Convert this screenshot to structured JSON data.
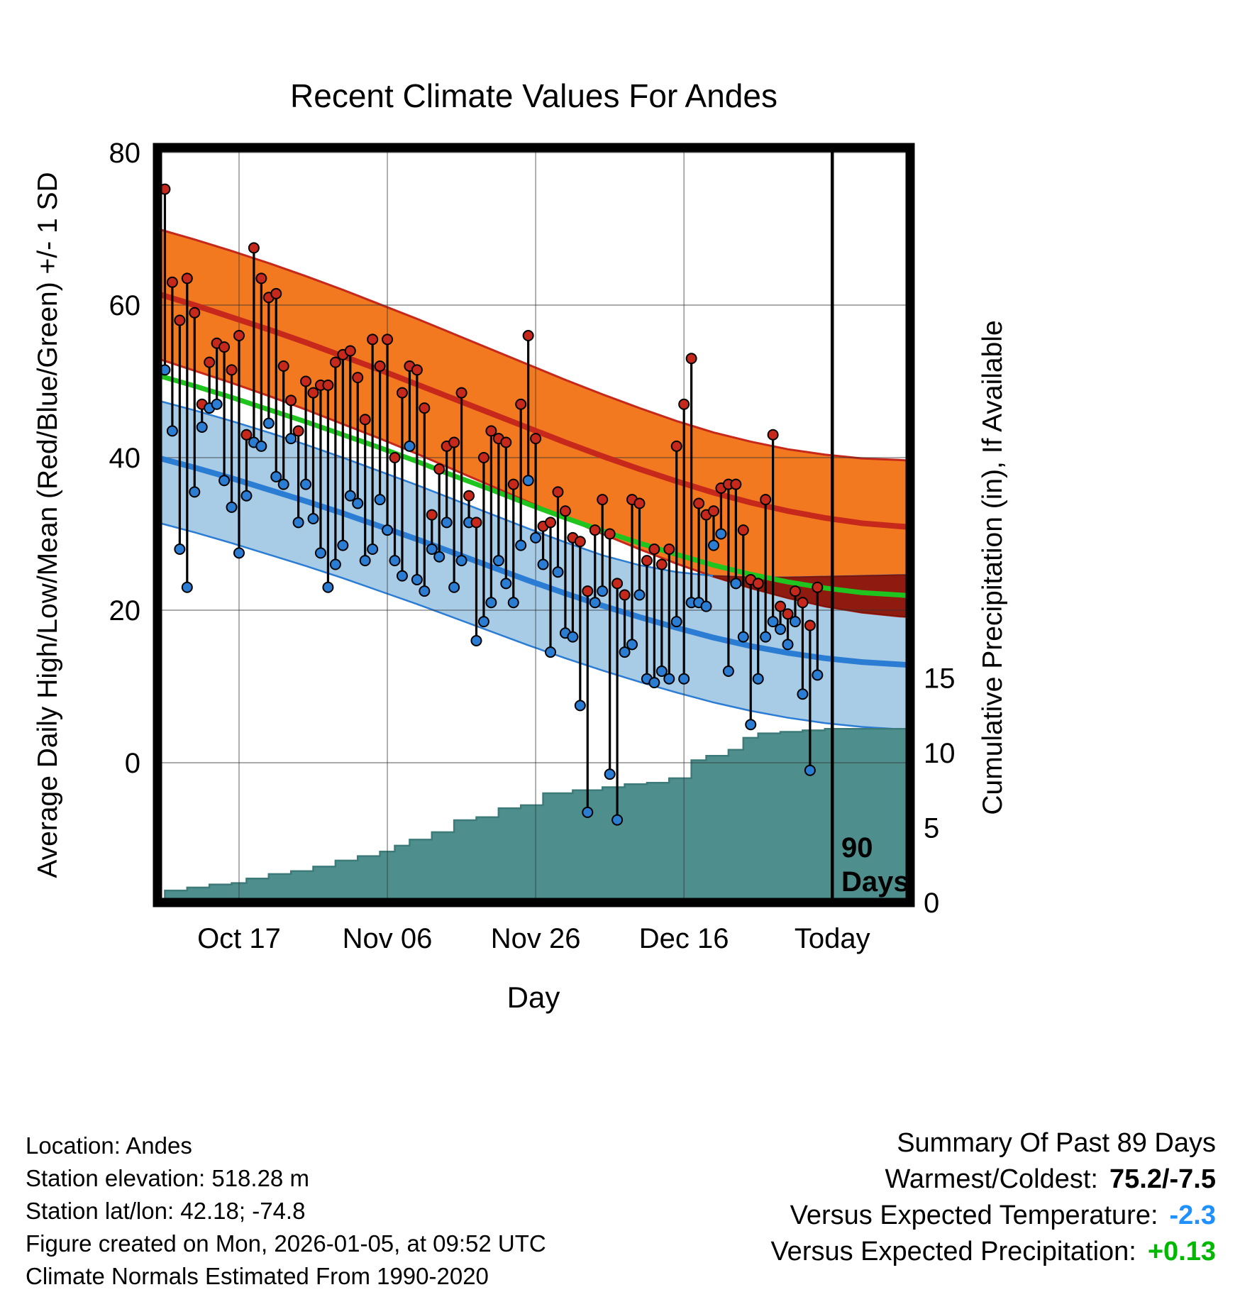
{
  "title": "Recent Climate Values For Andes",
  "chart_data": {
    "type": "line",
    "subtype": "climate-normals-bands + daily high/low whiskers + cumulative precipitation step area",
    "title": "Recent Climate Values For Andes",
    "xlabel": "Day",
    "ylabel_left": "Average Daily High/Low/Mean (Red/Blue/Green) +/- 1 SD",
    "ylabel_right": "Cumulative Precipitation (in), If Available",
    "x_domain_days": [
      0,
      101.5
    ],
    "temp_axis_range": [
      -18.3,
      80
    ],
    "precip_axis_range": [
      0,
      50.4
    ],
    "x_ticks": [
      {
        "day": 11,
        "label": "Oct 17"
      },
      {
        "day": 31,
        "label": "Nov 06"
      },
      {
        "day": 51,
        "label": "Nov 26"
      },
      {
        "day": 71,
        "label": "Dec 16"
      },
      {
        "day": 91,
        "label": "Today"
      }
    ],
    "left_ticks": [
      0,
      20,
      40,
      60,
      80
    ],
    "right_ticks": [
      0,
      5,
      10,
      15
    ],
    "today_day": 91,
    "normals": {
      "days": [
        0,
        5,
        10,
        15,
        20,
        25,
        30,
        35,
        40,
        45,
        50,
        55,
        60,
        65,
        70,
        75,
        80,
        85,
        90,
        95,
        100,
        101.5
      ],
      "high_upper": [
        70.0,
        68.6,
        67.1,
        65.5,
        63.8,
        62.0,
        60.1,
        58.2,
        56.2,
        54.2,
        52.2,
        50.2,
        48.3,
        46.5,
        44.8,
        43.3,
        42.1,
        41.1,
        40.4,
        39.9,
        39.7,
        39.6
      ],
      "high_mean": [
        61.5,
        60.0,
        58.4,
        56.8,
        55.1,
        53.3,
        51.5,
        49.6,
        47.7,
        45.8,
        43.9,
        42.0,
        40.2,
        38.5,
        36.9,
        35.4,
        34.1,
        33.0,
        32.1,
        31.4,
        31.0,
        30.9
      ],
      "high_lower": [
        53.0,
        51.4,
        49.8,
        48.1,
        46.3,
        44.4,
        42.5,
        40.5,
        38.4,
        36.3,
        34.2,
        32.1,
        30.0,
        28.0,
        26.1,
        24.4,
        22.9,
        21.6,
        20.5,
        19.7,
        19.2,
        19.1
      ],
      "mean": [
        50.8,
        49.4,
        47.9,
        46.3,
        44.7,
        43.0,
        41.3,
        39.5,
        37.6,
        35.8,
        33.9,
        32.1,
        30.4,
        28.8,
        27.3,
        25.9,
        24.7,
        23.7,
        22.9,
        22.3,
        22.0,
        21.9
      ],
      "low_upper": [
        47.5,
        46.2,
        44.8,
        43.3,
        41.7,
        40.0,
        38.2,
        36.4,
        34.5,
        32.6,
        30.7,
        28.9,
        27.2,
        25.9,
        25.0,
        24.5,
        24.3,
        24.3,
        24.4,
        24.5,
        24.6,
        24.6
      ],
      "low_mean": [
        40.0,
        38.7,
        37.3,
        35.8,
        34.3,
        32.7,
        31.0,
        29.3,
        27.5,
        25.7,
        23.9,
        22.2,
        20.6,
        19.1,
        17.7,
        16.4,
        15.3,
        14.4,
        13.7,
        13.2,
        12.9,
        12.8
      ],
      "low_lower": [
        31.5,
        30.2,
        28.8,
        27.3,
        25.8,
        24.2,
        22.5,
        20.8,
        19.0,
        17.2,
        15.4,
        13.7,
        12.1,
        10.6,
        9.2,
        7.9,
        6.8,
        5.9,
        5.2,
        4.7,
        4.4,
        4.3
      ]
    },
    "daily_high_low": [
      [
        1,
        75.2,
        51.5
      ],
      [
        2,
        63,
        43.5
      ],
      [
        3,
        58,
        28
      ],
      [
        4,
        63.5,
        23
      ],
      [
        5,
        59,
        35.5
      ],
      [
        6,
        47,
        44
      ],
      [
        7,
        52.5,
        46.5
      ],
      [
        8,
        55,
        47
      ],
      [
        9,
        54.5,
        37
      ],
      [
        10,
        51.5,
        33.5
      ],
      [
        11,
        56,
        27.5
      ],
      [
        12,
        43,
        35
      ],
      [
        13,
        67.5,
        42
      ],
      [
        14,
        63.5,
        41.5
      ],
      [
        15,
        61,
        44.5
      ],
      [
        16,
        61.5,
        37.5
      ],
      [
        17,
        52,
        36.5
      ],
      [
        18,
        47.5,
        42.5
      ],
      [
        19,
        43.5,
        31.5
      ],
      [
        20,
        50,
        36.5
      ],
      [
        21,
        48.5,
        32
      ],
      [
        22,
        49.5,
        27.5
      ],
      [
        23,
        49.5,
        23
      ],
      [
        24,
        52.5,
        26
      ],
      [
        25,
        53.5,
        28.5
      ],
      [
        26,
        54,
        35
      ],
      [
        27,
        50.5,
        34
      ],
      [
        28,
        45,
        26.5
      ],
      [
        29,
        55.5,
        28
      ],
      [
        30,
        52,
        34.5
      ],
      [
        31,
        55.5,
        30.5
      ],
      [
        32,
        40,
        26.5
      ],
      [
        33,
        48.5,
        24.5
      ],
      [
        34,
        52,
        41.5
      ],
      [
        35,
        51.5,
        24
      ],
      [
        36,
        46.5,
        22.5
      ],
      [
        37,
        32.5,
        28
      ],
      [
        38,
        38.5,
        27
      ],
      [
        39,
        41.5,
        31.5
      ],
      [
        40,
        42,
        23
      ],
      [
        41,
        48.5,
        26.5
      ],
      [
        42,
        35,
        31.5
      ],
      [
        43,
        31.5,
        16
      ],
      [
        44,
        40,
        18.5
      ],
      [
        45,
        43.5,
        21
      ],
      [
        46,
        42.5,
        26.5
      ],
      [
        47,
        42,
        23.5
      ],
      [
        48,
        36.5,
        21
      ],
      [
        49,
        47,
        28.5
      ],
      [
        50,
        56,
        37
      ],
      [
        51,
        42.5,
        29.5
      ],
      [
        52,
        31,
        26
      ],
      [
        53,
        31.5,
        14.5
      ],
      [
        54,
        35.5,
        25
      ],
      [
        55,
        33,
        17
      ],
      [
        56,
        29.5,
        16.5
      ],
      [
        57,
        29,
        7.5
      ],
      [
        58,
        22.5,
        -6.5
      ],
      [
        59,
        30.5,
        21
      ],
      [
        60,
        34.5,
        22.5
      ],
      [
        61,
        30,
        -1.5
      ],
      [
        62,
        23.5,
        -7.5
      ],
      [
        63,
        22,
        14.5
      ],
      [
        64,
        34.5,
        15.5
      ],
      [
        65,
        34,
        22
      ],
      [
        66,
        26.5,
        11
      ],
      [
        67,
        28,
        10.5
      ],
      [
        68,
        26,
        12
      ],
      [
        69,
        28,
        11
      ],
      [
        70,
        41.5,
        18.5
      ],
      [
        71,
        47,
        11
      ],
      [
        72,
        53,
        21
      ],
      [
        73,
        34,
        21
      ],
      [
        74,
        32.5,
        20.5
      ],
      [
        75,
        33,
        28.5
      ],
      [
        76,
        36,
        30
      ],
      [
        77,
        36.5,
        12
      ],
      [
        78,
        36.5,
        23.5
      ],
      [
        79,
        30.5,
        16.5
      ],
      [
        80,
        24,
        5
      ],
      [
        81,
        23.5,
        11
      ],
      [
        82,
        34.5,
        16.5
      ],
      [
        83,
        43,
        18.5
      ],
      [
        84,
        20.5,
        17.5
      ],
      [
        85,
        19.5,
        15.5
      ],
      [
        86,
        22.5,
        18.5
      ],
      [
        87,
        21,
        9
      ],
      [
        88,
        18,
        -1
      ],
      [
        89,
        23,
        11.5
      ]
    ],
    "cumulative_precip_in": [
      [
        1,
        0.8
      ],
      [
        4,
        1.0
      ],
      [
        7,
        1.2
      ],
      [
        10,
        1.3
      ],
      [
        12,
        1.6
      ],
      [
        15,
        1.9
      ],
      [
        18,
        2.1
      ],
      [
        21,
        2.4
      ],
      [
        24,
        2.8
      ],
      [
        27,
        3.1
      ],
      [
        30,
        3.4
      ],
      [
        32,
        3.8
      ],
      [
        34,
        4.2
      ],
      [
        37,
        4.7
      ],
      [
        40,
        5.5
      ],
      [
        43,
        5.7
      ],
      [
        46,
        6.3
      ],
      [
        49,
        6.5
      ],
      [
        52,
        7.3
      ],
      [
        56,
        7.5
      ],
      [
        60,
        7.7
      ],
      [
        63,
        7.9
      ],
      [
        66,
        8.0
      ],
      [
        69,
        8.3
      ],
      [
        72,
        9.5
      ],
      [
        74,
        9.8
      ],
      [
        77,
        10.2
      ],
      [
        79,
        11.0
      ],
      [
        81,
        11.3
      ],
      [
        84,
        11.4
      ],
      [
        87,
        11.5
      ],
      [
        90,
        11.6
      ],
      [
        101.5,
        11.7
      ]
    ]
  },
  "annotations": {
    "today_label_line1": "90",
    "today_label_line2": "Days"
  },
  "footer": {
    "location": "Location: Andes",
    "elevation": "Station elevation: 518.28 m",
    "latlon": "Station lat/lon: 42.18; -74.8",
    "created": "Figure created on Mon, 2026-01-05, at 09:52 UTC",
    "normals_note": "Climate Normals Estimated From 1990-2020"
  },
  "summary": {
    "title": "Summary Of Past 89 Days",
    "warmest_coldest_label": "Warmest/Coldest:",
    "warmest_coldest_value": "75.2/-7.5",
    "vs_temp_label": "Versus Expected Temperature:",
    "vs_temp_value": "-2.3",
    "vs_precip_label": "Versus Expected Precipitation:",
    "vs_precip_value": "+0.13"
  },
  "colors": {
    "high_band": "#F2791F",
    "high_line": "#C6281C",
    "overlap_band": "#8E1A10",
    "overlap_edge": "#7A150C",
    "mean_line": "#1FC41F",
    "low_band": "#A8CBE6",
    "low_line": "#2B7CD3",
    "precip_fill": "#4E8F8D",
    "precip_edge": "#3C7B79",
    "point_high": "#C6281C",
    "point_low": "#2B7CD3",
    "whisker": "#000000",
    "grid": "#333333",
    "frame": "#000000",
    "summary_temp_value": "#1E90FF",
    "summary_precip_value": "#00B800"
  }
}
